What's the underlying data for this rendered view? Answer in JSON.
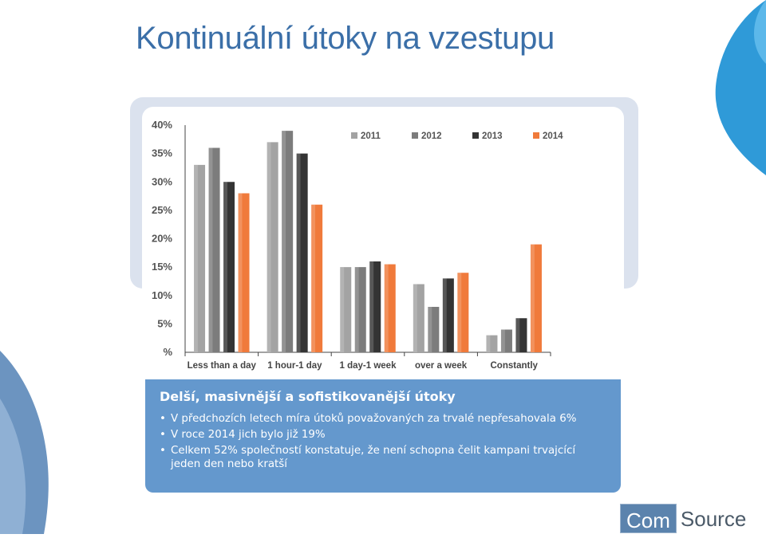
{
  "slide": {
    "title": "Kontinuální útoky na vzestupu",
    "box_heading": "Delší, masivnější a sofistikovanější útoky",
    "bullets": [
      "V předchozích letech míra útoků považovaných za trvalé nepřesahovala 6%",
      "V roce 2014 jich bylo již 19%",
      "Celkem 52% společností konstatuje, že není schopna čelit kampani trvajcící jeden den nebo kratší"
    ]
  },
  "logo": {
    "part1": "Com",
    "part2": "Source"
  },
  "colors": {
    "title": "#3b6fa8",
    "box": "#6498cd",
    "s2011": "#a3a3a3",
    "s2012": "#7c7c7c",
    "s2013": "#343434",
    "s2014": "#f07a3b"
  },
  "chart_data": {
    "type": "bar",
    "categories": [
      "Less than a day",
      "1 hour-1 day",
      "1 day-1 week",
      "over a week",
      "Constantly"
    ],
    "series": [
      {
        "name": "2011",
        "values": [
          33,
          37,
          15,
          12,
          3
        ]
      },
      {
        "name": "2012",
        "values": [
          36,
          39,
          15,
          8,
          4
        ]
      },
      {
        "name": "2013",
        "values": [
          30,
          35,
          16,
          13,
          6
        ]
      },
      {
        "name": "2014",
        "values": [
          28,
          26,
          15.5,
          14,
          19
        ]
      }
    ],
    "yticks": [
      "%",
      "5%",
      "10%",
      "15%",
      "20%",
      "25%",
      "30%",
      "35%",
      "40%"
    ],
    "ylim": [
      0,
      40
    ],
    "legend": "top-right",
    "grid": false
  }
}
